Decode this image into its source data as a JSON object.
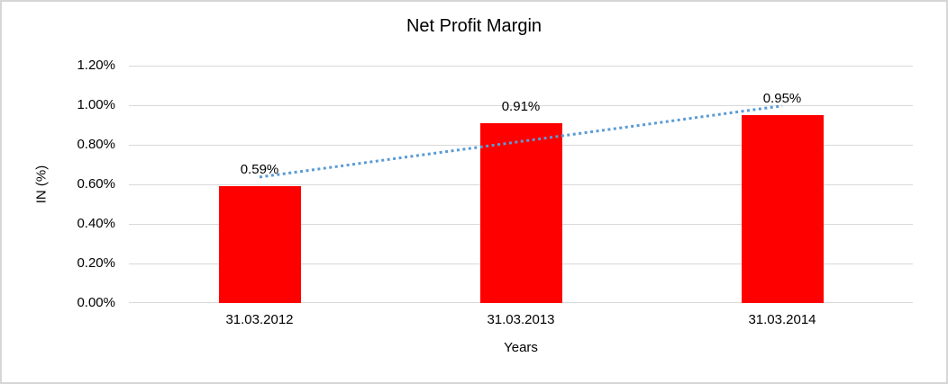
{
  "chart_data": {
    "type": "bar",
    "title": "Net Profit Margin",
    "categories": [
      "31.03.2012",
      "31.03.2013",
      "31.03.2014"
    ],
    "values": [
      0.59,
      0.91,
      0.95
    ],
    "data_labels": [
      "0.59%",
      "0.91%",
      "0.95%"
    ],
    "xlabel": "Years",
    "ylabel": "IN (%)",
    "ylim": [
      0,
      1.2
    ],
    "ytick_step": 0.2,
    "ytick_labels": [
      "0.00%",
      "0.20%",
      "0.40%",
      "0.60%",
      "0.80%",
      "1.00%",
      "1.20%"
    ],
    "grid": true,
    "legend": "none",
    "bar_color": "#FF0000",
    "gridline_color": "#D9D9D9",
    "text_color": "#000000",
    "trendline": {
      "type": "linear",
      "style": "dotted",
      "color": "#5B9BD5"
    }
  },
  "frame": {
    "border_color": "#D6D6D6",
    "background": "#FFFFFF"
  }
}
